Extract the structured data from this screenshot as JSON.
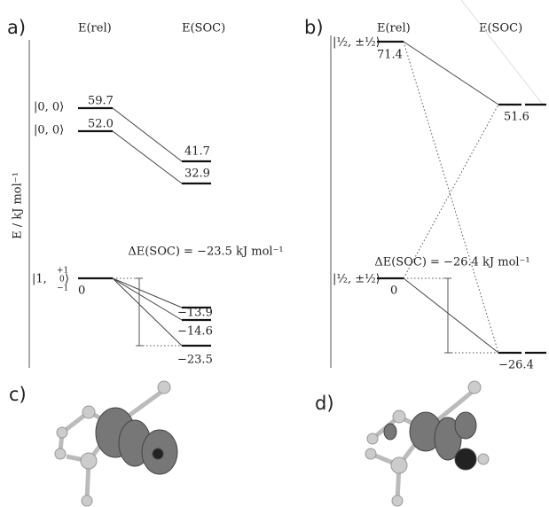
{
  "panels": [
    {
      "label": "a)",
      "col_rel": "E(rel)",
      "col_soc": "E(SOC)",
      "axis_label": "E / kJ mol⁻¹",
      "levels_rel": [
        {
          "state": "|0, 0⟩",
          "value": "59.7"
        },
        {
          "state": "|0, 0⟩",
          "value": "52.0"
        },
        {
          "state": "|1,",
          "m": [
            "+1",
            "0",
            "−1"
          ],
          "value": "0"
        }
      ],
      "levels_soc": [
        "41.7",
        "32.9",
        "−13.9",
        "−14.6",
        "−23.5"
      ],
      "delta": "ΔE(SOC) = −23.5 kJ mol⁻¹"
    },
    {
      "label": "b)",
      "col_rel": "E(rel)",
      "col_soc": "E(SOC)",
      "levels_rel": [
        {
          "state": "|½, ±½⟩",
          "value": "71.4"
        },
        {
          "state": "|½, ±½⟩",
          "value": "0"
        }
      ],
      "levels_soc": [
        "51.6",
        "−26.4"
      ],
      "delta": "ΔE(SOC) = −26.4 kJ mol⁻¹"
    }
  ],
  "images": [
    {
      "label": "c)"
    },
    {
      "label": "d)"
    }
  ]
}
